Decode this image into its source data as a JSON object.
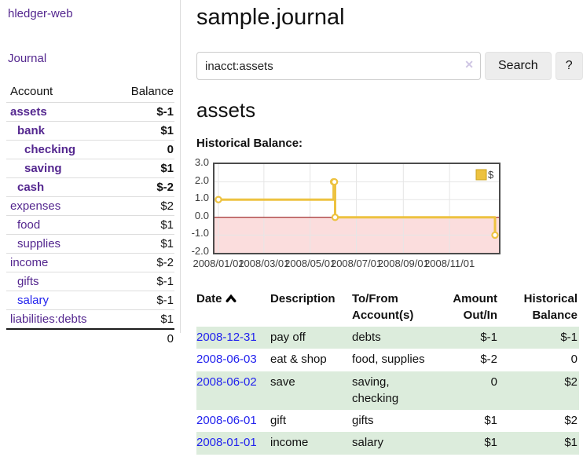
{
  "app_title": "hledger-web",
  "sidebar": {
    "journal_link": "Journal",
    "account_header": "Account",
    "balance_header": "Balance",
    "accounts": [
      {
        "name": "assets",
        "balance": "$-1",
        "depth": 0,
        "bold": true,
        "link_color": "purple",
        "balance_color": "negative-strong"
      },
      {
        "name": "bank",
        "balance": "$1",
        "depth": 1,
        "bold": true,
        "link_color": "purple",
        "balance_color": "normal"
      },
      {
        "name": "checking",
        "balance": "0",
        "depth": 2,
        "bold": true,
        "link_color": "purple",
        "balance_color": "normal"
      },
      {
        "name": "saving",
        "balance": "$1",
        "depth": 2,
        "bold": true,
        "link_color": "purple",
        "balance_color": "normal"
      },
      {
        "name": "cash",
        "balance": "$-2",
        "depth": 1,
        "bold": true,
        "link_color": "purple",
        "balance_color": "negative-strong"
      },
      {
        "name": "expenses",
        "balance": "$2",
        "depth": 0,
        "bold": false,
        "link_color": "purple",
        "balance_color": "normal"
      },
      {
        "name": "food",
        "balance": "$1",
        "depth": 1,
        "bold": false,
        "link_color": "purple",
        "balance_color": "normal"
      },
      {
        "name": "supplies",
        "balance": "$1",
        "depth": 1,
        "bold": false,
        "link_color": "purple",
        "balance_color": "normal"
      },
      {
        "name": "income",
        "balance": "$-2",
        "depth": 0,
        "bold": false,
        "link_color": "purple",
        "balance_color": "negative-soft"
      },
      {
        "name": "gifts",
        "balance": "$-1",
        "depth": 1,
        "bold": false,
        "link_color": "purple",
        "balance_color": "negative-soft"
      },
      {
        "name": "salary",
        "balance": "$-1",
        "depth": 1,
        "bold": false,
        "link_color": "blue",
        "balance_color": "negative-soft"
      },
      {
        "name": "liabilities:debts",
        "balance": "$1",
        "depth": 0,
        "bold": false,
        "link_color": "purple",
        "balance_color": "normal"
      }
    ],
    "total": "0"
  },
  "main": {
    "title": "sample.journal",
    "search": {
      "value": "inacct:assets",
      "clear_icon": "✕",
      "search_button": "Search",
      "help_button": "?"
    },
    "heading": "assets",
    "chart_title": "Historical Balance:"
  },
  "chart_data": {
    "type": "line",
    "title": "Historical Balance",
    "line_style": "step-after",
    "series": [
      {
        "name": "$",
        "color": "#edc240",
        "points": [
          [
            "2008-01-01",
            1
          ],
          [
            "2008-06-01",
            2
          ],
          [
            "2008-06-02",
            2
          ],
          [
            "2008-06-03",
            0
          ],
          [
            "2008-12-31",
            -1
          ]
        ]
      }
    ],
    "x_range": [
      "2008-01-01",
      "2008-12-31"
    ],
    "ylim": [
      -2,
      3
    ],
    "x_tick_labels": [
      "2008/01/01",
      "2008/03/01",
      "2008/05/01",
      "2008/07/01",
      "2008/09/01",
      "2008/11/01"
    ],
    "y_tick_labels": [
      "3.0",
      "2.0",
      "1.0",
      "0.0",
      "-1.0",
      "-2.0"
    ],
    "grid": true,
    "legend": {
      "label": "$",
      "position": "top-right"
    },
    "negative_region_color": "#fbdddd",
    "zero_line_color": "#8b0000",
    "grid_color": "#e6e6e6",
    "marker_fill": "#ffffff"
  },
  "register": {
    "headers": {
      "date": "Date",
      "description": "Description",
      "accounts": "To/From Account(s)",
      "amount": "Amount Out/In",
      "balance": "Historical Balance"
    },
    "sort_icon": "chevron-up",
    "rows": [
      {
        "date": "2008-12-31",
        "description": "pay off",
        "accounts": "debts",
        "amount": "$-1",
        "amount_negative": true,
        "balance": "$-1",
        "balance_negative": true,
        "shaded": true
      },
      {
        "date": "2008-06-03",
        "description": "eat & shop",
        "accounts": "food, supplies",
        "amount": "$-2",
        "amount_negative": true,
        "balance": "0",
        "balance_negative": false,
        "shaded": false
      },
      {
        "date": "2008-06-02",
        "description": "save",
        "accounts": "saving, checking",
        "amount": "0",
        "amount_negative": false,
        "balance": "$2",
        "balance_negative": false,
        "shaded": true
      },
      {
        "date": "2008-06-01",
        "description": "gift",
        "accounts": "gifts",
        "amount": "$1",
        "amount_negative": false,
        "balance": "$2",
        "balance_negative": false,
        "shaded": false
      },
      {
        "date": "2008-01-01",
        "description": "income",
        "accounts": "salary",
        "amount": "$1",
        "amount_negative": false,
        "balance": "$1",
        "balance_negative": false,
        "shaded": true
      }
    ]
  },
  "colors": {
    "purple_link": "#54278f",
    "blue_link": "#2222ee",
    "negative_strong": "#9e1a1a",
    "negative_soft": "#b26a6a",
    "row_shading_green": "#dcecdc",
    "accent_gold": "#edc240"
  }
}
